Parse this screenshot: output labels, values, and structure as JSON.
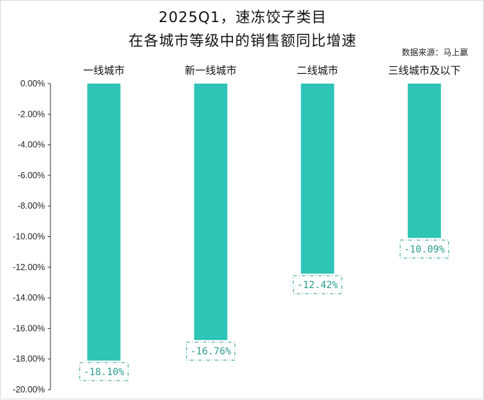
{
  "chart_data": {
    "type": "bar",
    "title": "2025Q1，速冻饺子类目",
    "subtitle": "在各城市等级中的销售额同比增速",
    "source": "数据来源：马上赢",
    "categories": [
      "一线城市",
      "新一线城市",
      "二线城市",
      "三线城市及以下"
    ],
    "values": [
      -18.1,
      -16.76,
      -12.42,
      -10.09
    ],
    "data_labels": [
      "-18.10%",
      "-16.76%",
      "-12.42%",
      "-10.09%"
    ],
    "ylim": [
      -20,
      0
    ],
    "yticks": [
      0,
      -2,
      -4,
      -6,
      -8,
      -10,
      -12,
      -14,
      -16,
      -18,
      -20
    ],
    "ytick_labels": [
      "0.00%",
      "-2.00%",
      "-4.00%",
      "-6.00%",
      "-8.00%",
      "-10.00%",
      "-12.00%",
      "-14.00%",
      "-16.00%",
      "-18.00%",
      "-20.00%"
    ],
    "grid": false,
    "legend": "none",
    "colors": {
      "bar": "#2ec4b6",
      "label_text": "#2a9d8f",
      "label_border": "#2a9d8f"
    }
  }
}
